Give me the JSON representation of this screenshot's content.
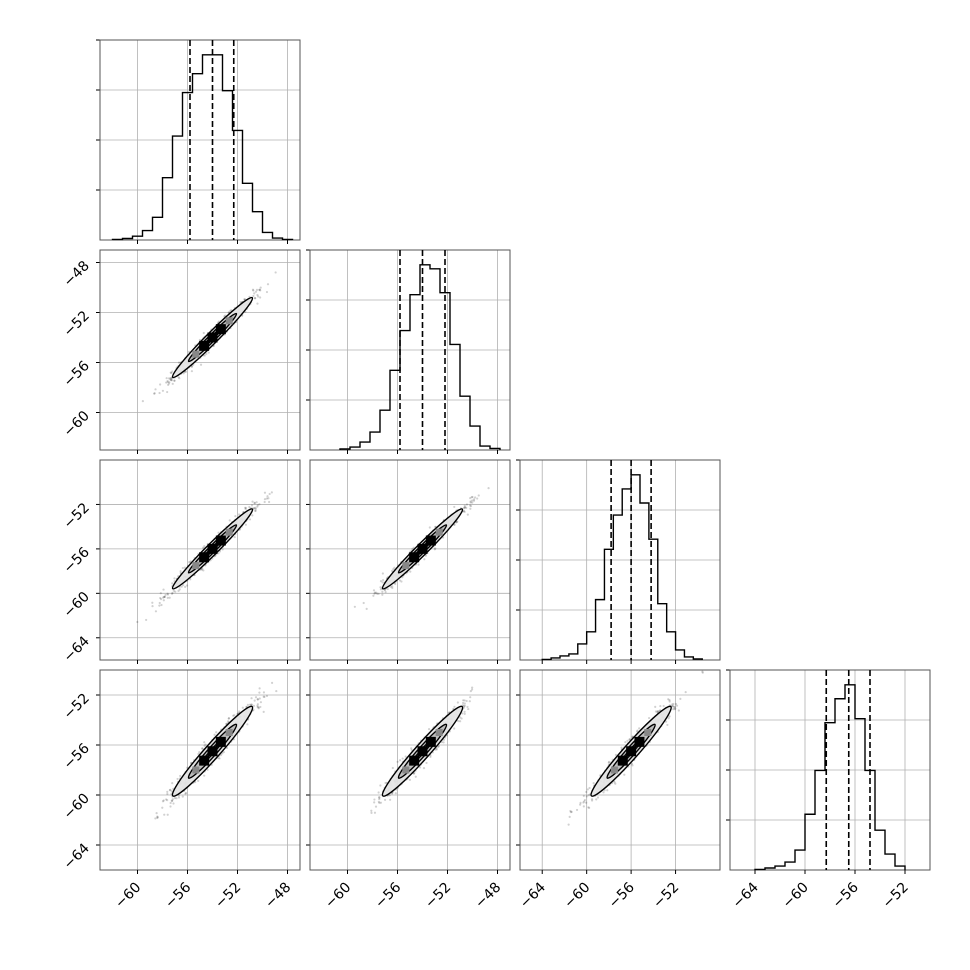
{
  "chart_data": {
    "type": "corner",
    "n_params": 4,
    "grid": true,
    "histograms": [
      {
        "param": 0,
        "xlim": [
          -63,
          -47
        ],
        "bins": [
          -62.0,
          -61.2,
          -60.4,
          -59.6,
          -58.8,
          -58.0,
          -57.2,
          -56.4,
          -55.6,
          -54.8,
          -54.0,
          -53.2,
          -52.4,
          -51.6,
          -50.8,
          -50.0,
          -49.2,
          -48.4,
          -47.6
        ],
        "counts": [
          0.3,
          0.8,
          2,
          5,
          12,
          33,
          55,
          78,
          88,
          98,
          98,
          79,
          58,
          30,
          15,
          4,
          1,
          0.3
        ],
        "quantiles": [
          -55.8,
          -54.0,
          -52.3
        ]
      },
      {
        "param": 1,
        "xlim": [
          -63,
          -47
        ],
        "bins": [
          -60.6,
          -59.8,
          -59.0,
          -58.2,
          -57.4,
          -56.6,
          -55.8,
          -55.0,
          -54.2,
          -53.4,
          -52.6,
          -51.8,
          -51.0,
          -50.2,
          -49.4,
          -48.6,
          -47.8
        ],
        "counts": [
          0.5,
          1.5,
          4,
          9,
          20,
          40,
          60,
          78,
          93,
          91,
          79,
          53,
          27,
          12,
          2,
          0.8
        ],
        "quantiles": [
          -55.8,
          -54.0,
          -52.2
        ]
      },
      {
        "param": 2,
        "xlim": [
          -66,
          -48
        ],
        "bins": [
          -64.0,
          -63.2,
          -62.4,
          -61.6,
          -60.8,
          -60.0,
          -59.2,
          -58.4,
          -57.6,
          -56.8,
          -56.0,
          -55.2,
          -54.4,
          -53.6,
          -52.8,
          -52.0,
          -51.2,
          -50.4,
          -49.6
        ],
        "counts": [
          0.3,
          1,
          2,
          3,
          8,
          14,
          30,
          55,
          72,
          85,
          92,
          78,
          60,
          28,
          14,
          5,
          1.5,
          0.5
        ],
        "quantiles": [
          -57.8,
          -56.0,
          -54.2
        ]
      },
      {
        "param": 3,
        "xlim": [
          -66,
          -50
        ],
        "bins": [
          -64.0,
          -63.2,
          -62.4,
          -61.6,
          -60.8,
          -60.0,
          -59.2,
          -58.4,
          -57.6,
          -56.8,
          -56.0,
          -55.2,
          -54.4,
          -53.6,
          -52.8,
          -52.0
        ],
        "counts": [
          0.3,
          1,
          2,
          4,
          10,
          28,
          50,
          74,
          86,
          93,
          76,
          50,
          20,
          8,
          2
        ],
        "quantiles": [
          -58.3,
          -56.5,
          -54.8
        ]
      }
    ],
    "scatter_panels": [
      {
        "row": 1,
        "col": 0,
        "x_center": -54.0,
        "y_center": -54.0,
        "x_sd": 1.6,
        "y_sd": 1.6,
        "rho": 0.98
      },
      {
        "row": 2,
        "col": 0,
        "x_center": -54.0,
        "y_center": -56.0,
        "x_sd": 1.6,
        "y_sd": 1.8,
        "rho": 0.98
      },
      {
        "row": 2,
        "col": 1,
        "x_center": -54.0,
        "y_center": -56.0,
        "x_sd": 1.6,
        "y_sd": 1.8,
        "rho": 0.98
      },
      {
        "row": 3,
        "col": 0,
        "x_center": -54.0,
        "y_center": -56.5,
        "x_sd": 1.6,
        "y_sd": 1.8,
        "rho": 0.97
      },
      {
        "row": 3,
        "col": 1,
        "x_center": -54.0,
        "y_center": -56.5,
        "x_sd": 1.6,
        "y_sd": 1.8,
        "rho": 0.97
      },
      {
        "row": 3,
        "col": 2,
        "x_center": -56.0,
        "y_center": -56.5,
        "x_sd": 1.8,
        "y_sd": 1.8,
        "rho": 0.97
      }
    ],
    "columns": [
      {
        "col": 0,
        "xlim": [
          -63,
          -47
        ],
        "xticks": [
          -60,
          -56,
          -52,
          -48
        ],
        "xtick_labels": [
          "−60",
          "−56",
          "−52",
          "−48"
        ]
      },
      {
        "col": 1,
        "xlim": [
          -63,
          -47
        ],
        "xticks": [
          -60,
          -56,
          -52,
          -48
        ],
        "xtick_labels": [
          "−60",
          "−56",
          "−52",
          "−48"
        ]
      },
      {
        "col": 2,
        "xlim": [
          -66,
          -48
        ],
        "xticks": [
          -64,
          -60,
          -56,
          -52
        ],
        "xtick_labels": [
          "−64",
          "−60",
          "−56",
          "−52"
        ]
      },
      {
        "col": 3,
        "xlim": [
          -66,
          -50
        ],
        "xticks": [
          -64,
          -60,
          -56,
          -52
        ],
        "xtick_labels": [
          "−64",
          "−60",
          "−56",
          "−52"
        ]
      }
    ],
    "rows": [
      {
        "row": 1,
        "ylim": [
          -63,
          -47
        ],
        "yticks": [
          -48,
          -52,
          -56,
          -60
        ],
        "ytick_labels": [
          "−48",
          "−52",
          "−56",
          "−60"
        ]
      },
      {
        "row": 2,
        "ylim": [
          -66,
          -48
        ],
        "yticks": [
          -52,
          -56,
          -60,
          -64
        ],
        "ytick_labels": [
          "−52",
          "−56",
          "−60",
          "−64"
        ]
      },
      {
        "row": 3,
        "ylim": [
          -66,
          -50
        ],
        "yticks": [
          -52,
          -56,
          -60,
          -64
        ],
        "ytick_labels": [
          "−52",
          "−56",
          "−60",
          "−64"
        ]
      }
    ]
  }
}
